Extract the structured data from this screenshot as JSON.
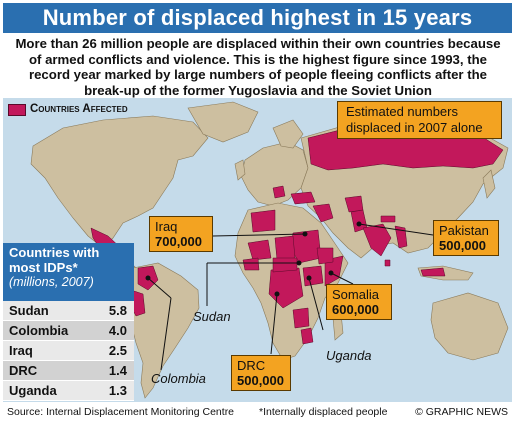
{
  "title": "Number of displaced highest in 15 years",
  "intro": "More than 26 million people are displaced within their own countries because of armed conflicts and violence. This is the highest figure since 1993, the record year marked by large numbers of people fleeing conflicts after the break-up of the former Yugoslavia and the Soviet Union",
  "legend": {
    "label": "Countries Affected",
    "color": "#c2185b"
  },
  "estimate_box": "Estimated numbers displaced in 2007 alone",
  "callouts": {
    "iraq": {
      "country": "Iraq",
      "value": "700,000"
    },
    "pakistan": {
      "country": "Pakistan",
      "value": "500,000"
    },
    "somalia": {
      "country": "Somalia",
      "value": "600,000"
    },
    "drc": {
      "country": "DRC",
      "value": "500,000"
    }
  },
  "map_labels": {
    "sudan": "Sudan",
    "uganda": "Uganda",
    "colombia": "Colombia"
  },
  "table": {
    "heading": "Countries with most IDPs*",
    "subheading": "(millions, 2007)",
    "rows": [
      {
        "country": "Sudan",
        "value": "5.8"
      },
      {
        "country": "Colombia",
        "value": "4.0"
      },
      {
        "country": "Iraq",
        "value": "2.5"
      },
      {
        "country": "DRC",
        "value": "1.4"
      },
      {
        "country": "Uganda",
        "value": "1.3"
      }
    ]
  },
  "footer": {
    "source": "Source: Internal Displacement Monitoring Centre",
    "note": "*Internally displaced people",
    "credit": "© GRAPHIC NEWS"
  },
  "colors": {
    "title_bar": "#2a6fb0",
    "ocean": "#c5dbea",
    "land": "#cdbfa0",
    "affected": "#c2185b",
    "callout": "#f3a321"
  }
}
